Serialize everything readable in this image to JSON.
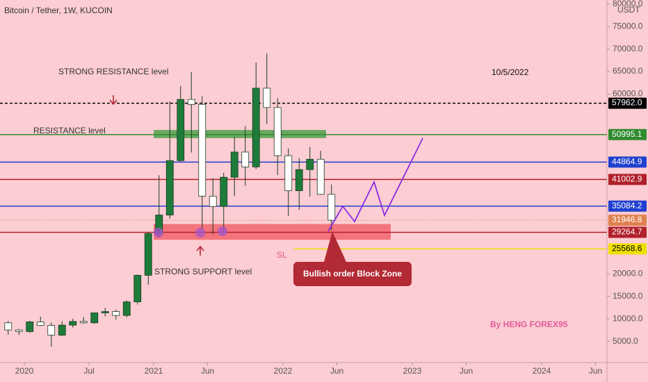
{
  "chart_data": {
    "type": "candlestick",
    "title": "Bitcoin / Tether, 1W, KUCOIN",
    "currency": "USDT",
    "x": [
      "2019-11",
      "2019-12",
      "2020-01",
      "2020-02",
      "2020-03",
      "2020-04",
      "2020-05",
      "2020-06",
      "2020-07",
      "2020-08",
      "2020-09",
      "2020-10",
      "2020-11",
      "2020-12",
      "2021-01",
      "2021-02",
      "2021-03",
      "2021-04",
      "2021-05",
      "2021-06",
      "2021-07",
      "2021-08",
      "2021-09",
      "2021-10",
      "2021-11",
      "2021-12",
      "2022-01",
      "2022-02",
      "2022-03",
      "2022-04",
      "2022-05"
    ],
    "open": [
      9150,
      7550,
      7200,
      9350,
      8550,
      6400,
      8630,
      9450,
      9140,
      11350,
      11650,
      10780,
      13800,
      19700,
      28990,
      33100,
      45200,
      58800,
      57700,
      37300,
      35000,
      41500,
      47100,
      43800,
      61300,
      57000,
      46300,
      38500,
      43200,
      45500,
      37700
    ],
    "high": [
      9500,
      7750,
      9600,
      10500,
      9200,
      9450,
      10070,
      10400,
      11450,
      12470,
      12070,
      14100,
      19900,
      29300,
      41950,
      58350,
      61800,
      64850,
      59500,
      41300,
      42500,
      50500,
      52900,
      67000,
      69000,
      59100,
      47900,
      45800,
      48200,
      47400,
      39900
    ],
    "low": [
      6500,
      6430,
      6900,
      8400,
      3850,
      6150,
      8100,
      8900,
      8900,
      10550,
      9850,
      10370,
      13200,
      17600,
      28100,
      32300,
      45000,
      47000,
      30000,
      28800,
      29300,
      37300,
      39600,
      43300,
      53300,
      42000,
      32900,
      34300,
      37200,
      37600,
      29700
    ],
    "close": [
      7550,
      7200,
      9350,
      8550,
      6400,
      8630,
      9450,
      9140,
      11350,
      11650,
      10780,
      13800,
      19700,
      28990,
      33100,
      45200,
      58800,
      57700,
      37300,
      35000,
      41500,
      47100,
      43800,
      61300,
      57000,
      46300,
      38500,
      43200,
      45500,
      37700,
      31946.8
    ],
    "up_color": "#1e7b3a",
    "down_color": "#ffffff",
    "ylim": [
      0,
      80900
    ],
    "yticks": [
      {
        "value": 80000,
        "label": "80000.0"
      },
      {
        "value": 75000,
        "label": "75000.0"
      },
      {
        "value": 70000,
        "label": "70000.0"
      },
      {
        "value": 65000,
        "label": "65000.0"
      },
      {
        "value": 60000,
        "label": "60000.0"
      },
      {
        "value": 20000,
        "label": "20000.0"
      },
      {
        "value": 15000,
        "label": "15000.0"
      },
      {
        "value": 10000,
        "label": "10000.0"
      },
      {
        "value": 5000,
        "label": "5000.0"
      }
    ],
    "xticks": [
      {
        "value": "2020-01",
        "label": "2020"
      },
      {
        "value": "2020-07",
        "label": "Jul"
      },
      {
        "value": "2021-01",
        "label": "2021"
      },
      {
        "value": "2021-06",
        "label": "Jun"
      },
      {
        "value": "2022-01",
        "label": "2022"
      },
      {
        "value": "2022-06",
        "label": "Jun"
      },
      {
        "value": "2023-01",
        "label": "2023"
      },
      {
        "value": "2023-06",
        "label": "Jun"
      },
      {
        "value": "2024-01",
        "label": "2024"
      },
      {
        "value": "2024-06",
        "label": "Jun"
      }
    ],
    "levels": [
      {
        "value": 57962,
        "label": "57962.0",
        "color": "#000000",
        "text_color": "#ffffff",
        "style": "dashed"
      },
      {
        "value": 50995.1,
        "label": "50995.1",
        "color": "#2e8b2e",
        "text_color": "#ffffff",
        "style": "solid"
      },
      {
        "value": 44864.9,
        "label": "44864.9",
        "color": "#2040d0",
        "text_color": "#ffffff",
        "style": "solid"
      },
      {
        "value": 41002.9,
        "label": "41002.9",
        "color": "#b0202a",
        "text_color": "#ffffff",
        "style": "solid"
      },
      {
        "value": 35084.2,
        "label": "35084.2",
        "color": "#2040d0",
        "text_color": "#ffffff",
        "style": "solid"
      },
      {
        "value": 31946.8,
        "label": "31946.8",
        "color": "#e08050",
        "text_color": "#ffffff",
        "style": "dotted"
      },
      {
        "value": 29264.7,
        "label": "29264.7",
        "color": "#b0202a",
        "text_color": "#ffffff",
        "style": "solid"
      },
      {
        "value": 25568.6,
        "label": "25568.6",
        "color": "#f0e000",
        "text_color": "#000000",
        "style": "solid",
        "from": "2022-02"
      }
    ],
    "zones": [
      {
        "low": 50200,
        "high": 52000,
        "from": "2021-01",
        "to": "2022-05",
        "color": "#3a9a3a"
      },
      {
        "low": 27600,
        "high": 31100,
        "from": "2021-01",
        "to": "2022-11",
        "color": "#f2555f"
      }
    ],
    "annotations": [
      "STRONG RESISTANCE level",
      "RESISTANCE level",
      "STRONG SUPPORT level",
      "10/5/2022",
      "SL",
      "Bullish order Block Zone",
      "By HENG FOREX95"
    ]
  }
}
